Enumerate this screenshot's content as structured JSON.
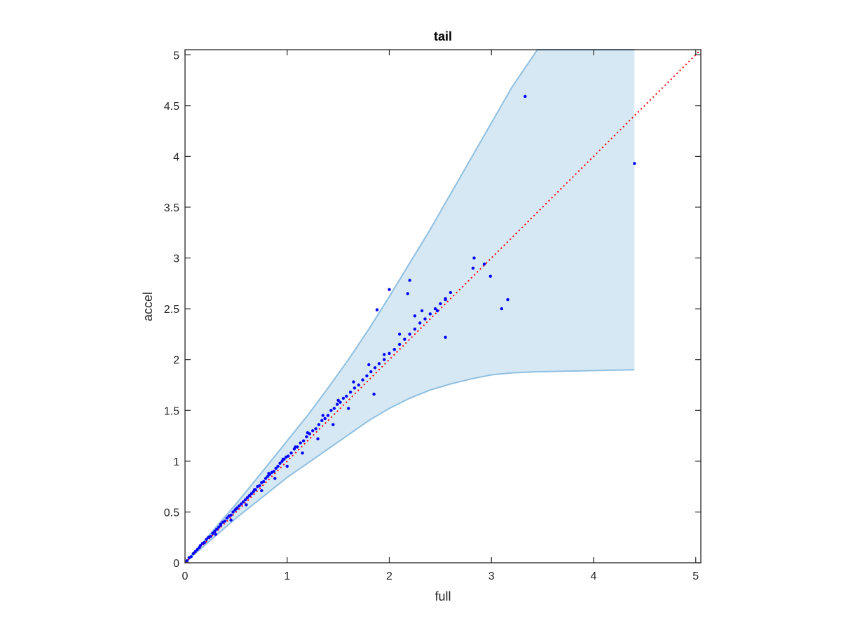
{
  "chart_data": {
    "type": "scatter",
    "title": "tail",
    "xlabel": "full",
    "ylabel": "accel",
    "xlim": [
      0,
      5.05
    ],
    "ylim": [
      0,
      5.05
    ],
    "xticks": [
      0,
      1,
      2,
      3,
      4,
      5
    ],
    "yticks": [
      0,
      0.5,
      1,
      1.5,
      2,
      2.5,
      3,
      3.5,
      4,
      4.5,
      5
    ],
    "xtick_labels": [
      "0",
      "1",
      "2",
      "3",
      "4",
      "5"
    ],
    "ytick_labels": [
      "0",
      "0.5",
      "1",
      "1.5",
      "2",
      "2.5",
      "3",
      "3.5",
      "4",
      "4.5",
      "5"
    ],
    "grid": false,
    "colors": {
      "points": "#0000ff",
      "band_fill": "#d6e8f4",
      "band_edge": "#8fbfe0",
      "reference_line": "#ff0000",
      "axes": "#262626"
    },
    "reference_line": {
      "x": [
        0,
        5.05
      ],
      "y": [
        0,
        5.05
      ],
      "style": "dotted"
    },
    "band": {
      "x": [
        0,
        0.2,
        0.5,
        0.8,
        1.0,
        1.2,
        1.4,
        1.6,
        1.8,
        2.0,
        2.2,
        2.4,
        2.6,
        2.8,
        3.0,
        3.2,
        3.45,
        4.4
      ],
      "upper": [
        0,
        0.23,
        0.58,
        0.95,
        1.2,
        1.45,
        1.72,
        2.0,
        2.3,
        2.62,
        2.95,
        3.28,
        3.63,
        3.98,
        4.33,
        4.68,
        5.05,
        5.05
      ],
      "lower": [
        0,
        0.18,
        0.44,
        0.68,
        0.84,
        0.98,
        1.12,
        1.26,
        1.4,
        1.52,
        1.62,
        1.7,
        1.76,
        1.81,
        1.85,
        1.87,
        1.88,
        1.9
      ]
    },
    "series": [
      {
        "x": [
          0.02,
          0.04,
          0.06,
          0.08,
          0.1,
          0.12,
          0.14,
          0.15,
          0.17,
          0.19,
          0.21,
          0.23,
          0.25,
          0.27,
          0.29,
          0.31,
          0.33,
          0.35,
          0.37,
          0.39,
          0.41,
          0.43,
          0.45,
          0.47,
          0.49,
          0.51,
          0.53,
          0.55,
          0.57,
          0.59,
          0.61,
          0.63,
          0.65,
          0.67,
          0.69,
          0.71,
          0.73,
          0.75,
          0.77,
          0.79,
          0.81,
          0.83,
          0.85,
          0.87,
          0.89,
          0.91,
          0.93,
          0.95,
          0.97,
          0.99,
          1.01,
          1.04,
          1.07,
          1.1,
          1.13,
          1.16,
          1.19,
          1.22,
          1.25,
          1.28,
          1.31,
          1.34,
          1.37,
          1.4,
          1.43,
          1.46,
          1.49,
          1.52,
          1.55,
          1.58,
          1.62,
          1.66,
          1.7,
          1.74,
          1.78,
          1.82,
          1.86,
          1.9,
          1.95,
          2.0,
          2.05,
          2.1,
          2.15,
          2.2,
          2.25,
          2.3,
          2.35,
          2.4,
          2.45,
          2.5,
          2.55,
          2.6,
          0.3,
          0.45,
          0.6,
          0.75,
          0.88,
          1.0,
          1.15,
          1.3,
          1.45,
          1.6,
          0.35,
          0.5,
          0.68,
          0.82,
          0.96,
          1.08,
          1.2,
          1.35,
          1.5,
          1.65,
          1.8,
          1.95,
          2.1,
          1.88,
          2.0,
          2.2,
          2.32,
          2.55,
          2.82,
          2.83,
          2.93,
          2.99,
          3.1,
          3.16,
          3.33,
          4.4,
          2.18,
          2.25,
          2.47,
          2.55,
          1.85
        ],
        "y": [
          0.02,
          0.05,
          0.06,
          0.09,
          0.11,
          0.13,
          0.15,
          0.17,
          0.19,
          0.2,
          0.23,
          0.25,
          0.26,
          0.29,
          0.31,
          0.33,
          0.35,
          0.38,
          0.4,
          0.41,
          0.44,
          0.46,
          0.47,
          0.5,
          0.52,
          0.54,
          0.56,
          0.58,
          0.6,
          0.62,
          0.64,
          0.66,
          0.68,
          0.7,
          0.72,
          0.75,
          0.76,
          0.79,
          0.8,
          0.83,
          0.85,
          0.87,
          0.89,
          0.9,
          0.93,
          0.95,
          0.98,
          1.0,
          1.02,
          1.04,
          1.05,
          1.08,
          1.12,
          1.14,
          1.18,
          1.2,
          1.24,
          1.27,
          1.3,
          1.32,
          1.36,
          1.4,
          1.42,
          1.45,
          1.5,
          1.52,
          1.56,
          1.58,
          1.62,
          1.64,
          1.68,
          1.72,
          1.75,
          1.8,
          1.84,
          1.88,
          1.92,
          1.96,
          2.0,
          2.06,
          2.1,
          2.15,
          2.2,
          2.25,
          2.3,
          2.36,
          2.4,
          2.45,
          2.5,
          2.55,
          2.6,
          2.66,
          0.28,
          0.42,
          0.57,
          0.71,
          0.83,
          0.95,
          1.08,
          1.22,
          1.36,
          1.52,
          0.37,
          0.53,
          0.72,
          0.88,
          1.02,
          1.14,
          1.28,
          1.45,
          1.6,
          1.78,
          1.95,
          2.05,
          2.25,
          2.49,
          2.69,
          2.78,
          2.48,
          2.59,
          2.9,
          3.0,
          2.94,
          2.82,
          2.5,
          2.59,
          4.59,
          3.93,
          2.65,
          2.43,
          2.48,
          2.22,
          1.66
        ]
      }
    ]
  }
}
